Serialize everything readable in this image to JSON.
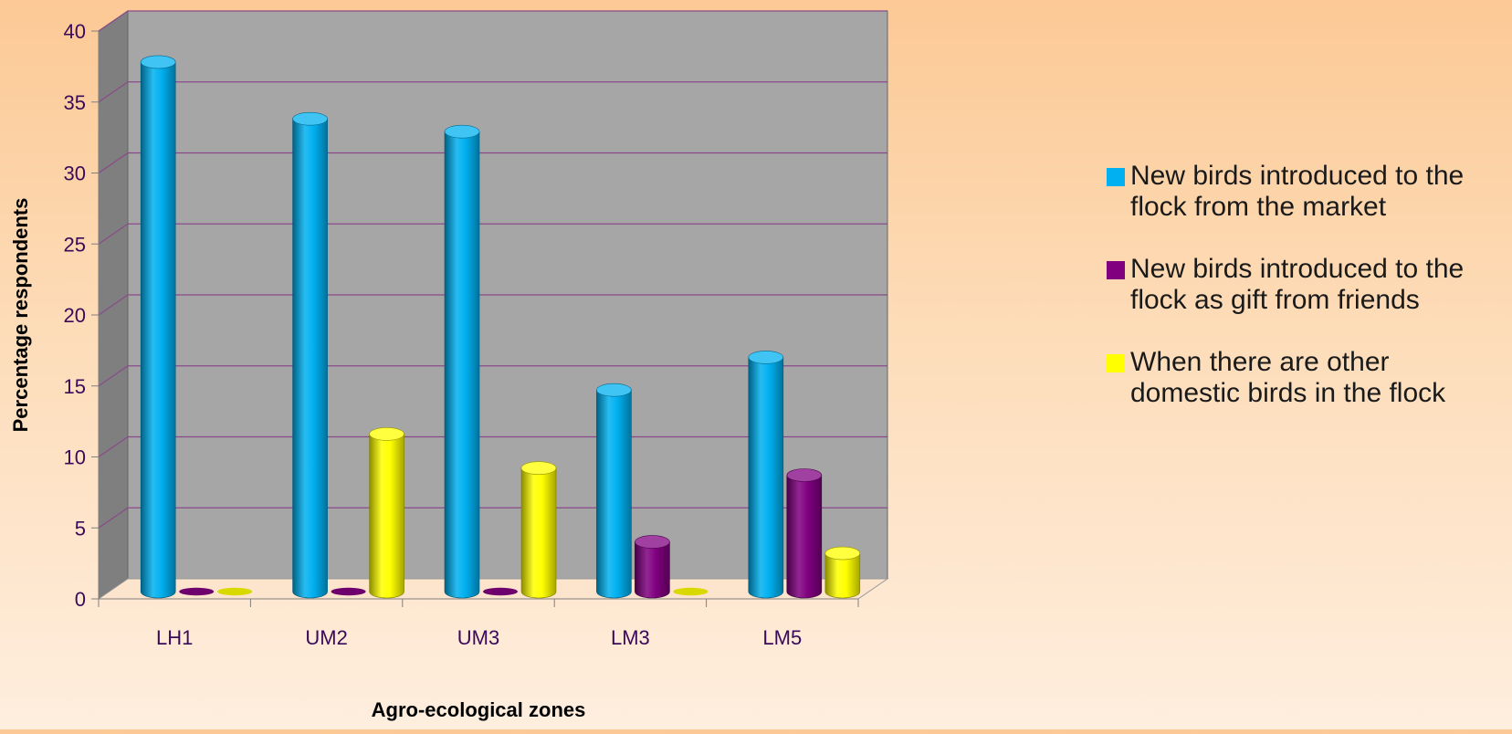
{
  "chart_data": {
    "type": "bar",
    "title": "",
    "xlabel": "Agro-ecological zones",
    "ylabel": "Percentage respondents",
    "categories": [
      "LH1",
      "UM2",
      "UM3",
      "LM3",
      "LM5"
    ],
    "ylim": [
      0,
      40
    ],
    "yticks": [
      "0",
      "5",
      "10",
      "15",
      "20",
      "25",
      "30",
      "35",
      "40"
    ],
    "grid": true,
    "legend_position": "right",
    "series": [
      {
        "name": "New birds introduced to the flock from the market",
        "color": "#00b0f0",
        "values": [
          37.3,
          33.3,
          32.4,
          14.2,
          16.5
        ]
      },
      {
        "name": "New birds introduced to the flock as gift from friends",
        "color": "#800080",
        "values": [
          0,
          0,
          0,
          3.5,
          8.2
        ]
      },
      {
        "name": "When there are other domestic birds in the flock",
        "color": "#ffff00",
        "values": [
          0,
          11.1,
          8.7,
          0,
          2.7
        ]
      }
    ]
  }
}
